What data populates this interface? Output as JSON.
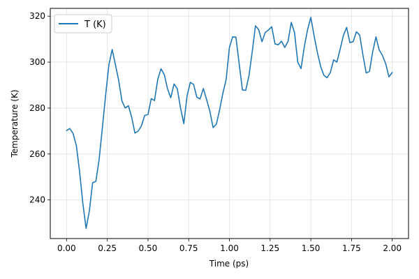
{
  "chart_data": {
    "type": "line",
    "xlabel": "Time (ps)",
    "ylabel": "Temperature (K)",
    "xlim": [
      -0.1,
      2.1
    ],
    "ylim": [
      223.2,
      323.4
    ],
    "xticks": [
      "0.00",
      "0.25",
      "0.50",
      "0.75",
      "1.00",
      "1.25",
      "1.50",
      "1.75",
      "2.00"
    ],
    "yticks": [
      "240",
      "260",
      "280",
      "300",
      "320"
    ],
    "grid": true,
    "legend_position": "top-left",
    "series": [
      {
        "name": "T (K)",
        "color": "#1f77b4",
        "x": [
          0.0,
          0.02,
          0.04,
          0.06,
          0.08,
          0.1,
          0.12,
          0.14,
          0.16,
          0.18,
          0.2,
          0.22,
          0.24,
          0.26,
          0.28,
          0.3,
          0.32,
          0.34,
          0.36,
          0.38,
          0.4,
          0.42,
          0.44,
          0.46,
          0.48,
          0.5,
          0.52,
          0.54,
          0.56,
          0.58,
          0.6,
          0.62,
          0.64,
          0.66,
          0.68,
          0.7,
          0.72,
          0.74,
          0.76,
          0.78,
          0.8,
          0.82,
          0.84,
          0.86,
          0.88,
          0.9,
          0.92,
          0.94,
          0.96,
          0.98,
          1.0,
          1.02,
          1.04,
          1.06,
          1.08,
          1.1,
          1.12,
          1.14,
          1.16,
          1.18,
          1.2,
          1.22,
          1.24,
          1.26,
          1.28,
          1.3,
          1.32,
          1.34,
          1.36,
          1.38,
          1.4,
          1.42,
          1.44,
          1.46,
          1.48,
          1.5,
          1.52,
          1.54,
          1.56,
          1.58,
          1.6,
          1.62,
          1.64,
          1.66,
          1.68,
          1.7,
          1.72,
          1.74,
          1.76,
          1.78,
          1.8,
          1.82,
          1.84,
          1.86,
          1.88,
          1.9,
          1.92,
          1.94,
          1.96,
          1.98,
          2.0
        ],
        "y": [
          270.2,
          271.1,
          268.9,
          263.8,
          252.3,
          238.5,
          227.6,
          235.2,
          247.5,
          248.1,
          257.6,
          271.5,
          285.7,
          298.8,
          305.5,
          298.9,
          292.1,
          283.1,
          280.0,
          281.0,
          276.0,
          269.1,
          270.0,
          272.3,
          276.8,
          277.2,
          284.1,
          283.3,
          292.5,
          297.1,
          294.6,
          288.4,
          284.5,
          290.5,
          288.4,
          280.0,
          273.2,
          285.3,
          291.2,
          290.3,
          284.7,
          284.0,
          288.5,
          283.7,
          278.6,
          271.5,
          273.0,
          279.3,
          286.5,
          292.4,
          306.3,
          311.0,
          310.9,
          299.3,
          287.9,
          287.7,
          294.0,
          304.4,
          315.8,
          314.1,
          308.9,
          312.9,
          314.0,
          315.4,
          307.9,
          307.6,
          309.1,
          306.4,
          309.0,
          317.3,
          312.8,
          299.9,
          297.2,
          306.7,
          314.1,
          319.5,
          311.5,
          304.3,
          298.2,
          294.3,
          293.2,
          295.5,
          301.0,
          300.0,
          305.6,
          311.6,
          315.1,
          308.5,
          308.9,
          313.2,
          311.8,
          303.1,
          295.3,
          295.9,
          304.5,
          311.0,
          305.3,
          302.9,
          299.3,
          293.6,
          295.5
        ]
      }
    ]
  }
}
